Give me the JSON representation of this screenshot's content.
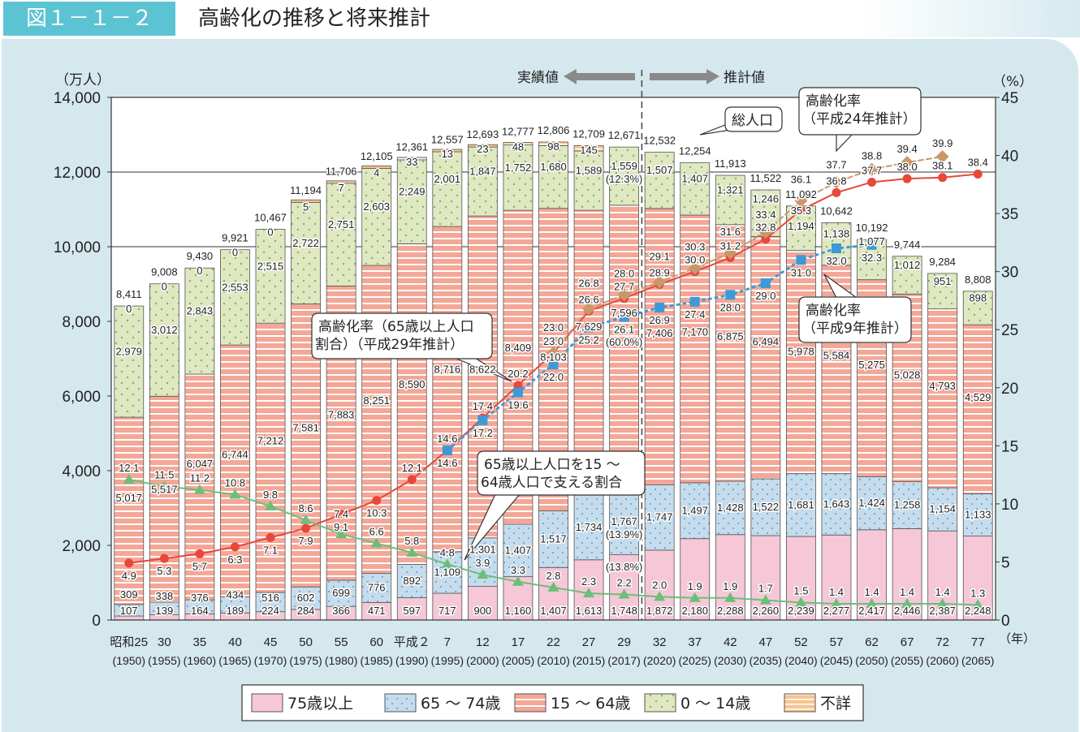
{
  "header": {
    "figure_no": "図１－１－２",
    "title": "高齢化の推移と将来推計"
  },
  "chart_data": {
    "type": "bar",
    "stacked": true,
    "left_axis": {
      "label": "（万人）",
      "range": [
        0,
        14000
      ],
      "ticks": [
        "0",
        "2,000",
        "4,000",
        "6,000",
        "8,000",
        "10,000",
        "12,000",
        "14,000"
      ]
    },
    "right_axis": {
      "label": "（%）",
      "range": [
        0,
        45
      ],
      "ticks": [
        "0",
        "5",
        "10",
        "15",
        "20",
        "25",
        "30",
        "35",
        "40",
        "45"
      ]
    },
    "x_unit": "（年）",
    "actual_label": "実績値",
    "estimate_label": "推計値",
    "categories": [
      {
        "era": "昭和25",
        "year": "(1950)"
      },
      {
        "era": "30",
        "year": "(1955)"
      },
      {
        "era": "35",
        "year": "(1960)"
      },
      {
        "era": "40",
        "year": "(1965)"
      },
      {
        "era": "45",
        "year": "(1970)"
      },
      {
        "era": "50",
        "year": "(1975)"
      },
      {
        "era": "55",
        "year": "(1980)"
      },
      {
        "era": "60",
        "year": "(1985)"
      },
      {
        "era": "平成２",
        "year": "(1990)"
      },
      {
        "era": "7",
        "year": "(1995)"
      },
      {
        "era": "12",
        "year": "(2000)"
      },
      {
        "era": "17",
        "year": "(2005)"
      },
      {
        "era": "22",
        "year": "(2010)"
      },
      {
        "era": "27",
        "year": "(2015)"
      },
      {
        "era": "29",
        "year": "(2017)"
      },
      {
        "era": "32",
        "year": "(2020)"
      },
      {
        "era": "37",
        "year": "(2025)"
      },
      {
        "era": "42",
        "year": "(2030)"
      },
      {
        "era": "47",
        "year": "(2035)"
      },
      {
        "era": "52",
        "year": "(2040)"
      },
      {
        "era": "57",
        "year": "(2045)"
      },
      {
        "era": "62",
        "year": "(2050)"
      },
      {
        "era": "67",
        "year": "(2055)"
      },
      {
        "era": "72",
        "year": "(2060)"
      },
      {
        "era": "77",
        "year": "(2065)"
      }
    ],
    "totals": [
      8411,
      9008,
      9430,
      9921,
      10467,
      11194,
      11706,
      12105,
      12361,
      12557,
      12693,
      12777,
      12806,
      12709,
      12671,
      12532,
      12254,
      11913,
      11522,
      11092,
      10642,
      10192,
      9744,
      9284,
      8808
    ],
    "series": [
      {
        "name": "75歳以上",
        "color": "#f5c7d7",
        "values": [
          107,
          139,
          164,
          189,
          224,
          284,
          366,
          471,
          597,
          717,
          900,
          1160,
          1407,
          1613,
          1748,
          1872,
          2180,
          2288,
          2260,
          2239,
          2277,
          2417,
          2446,
          2387,
          2248
        ]
      },
      {
        "name": "65 ～ 74歳",
        "color": "#c6dcec",
        "values": [
          309,
          338,
          376,
          434,
          516,
          602,
          699,
          776,
          892,
          1109,
          1301,
          1407,
          1517,
          1734,
          1767,
          1747,
          1497,
          1428,
          1522,
          1681,
          1643,
          1424,
          1258,
          1154,
          1133
        ]
      },
      {
        "name": "15 ～ 64歳",
        "color": "#f4a797",
        "values": [
          5017,
          5517,
          6047,
          6744,
          7212,
          7581,
          7883,
          8251,
          8590,
          8716,
          8622,
          8409,
          8103,
          7629,
          7596,
          7406,
          7170,
          6875,
          6494,
          5978,
          5584,
          5275,
          5028,
          4793,
          4529
        ]
      },
      {
        "name": "0 ～ 14歳",
        "color": "#dfe8c1",
        "values": [
          2979,
          3012,
          2843,
          2553,
          2515,
          2722,
          2751,
          2603,
          2249,
          2001,
          1847,
          1752,
          1680,
          1589,
          1559,
          1507,
          1407,
          1321,
          1246,
          1194,
          1138,
          1077,
          1012,
          951,
          898
        ]
      },
      {
        "name": "不詳",
        "color": "#f9c48e",
        "values": [
          0,
          0,
          0,
          0,
          0,
          5,
          7,
          4,
          33,
          13,
          23,
          48,
          98,
          145,
          null,
          null,
          null,
          null,
          null,
          null,
          null,
          null,
          null,
          null,
          null
        ]
      }
    ],
    "share_labels_2017": {
      "75歳以上": "(13.8%)",
      "65 ～ 74歳": "(13.9%)",
      "15 ～ 64歳": "(60.0%)",
      "0 ～ 14歳": "(12.3%)"
    },
    "lines": [
      {
        "name": "高齢化率（65歳以上人口割合）（平成29年推計）",
        "color": "#e8473a",
        "axis": "right",
        "values": [
          4.9,
          5.3,
          5.7,
          6.3,
          7.1,
          7.9,
          9.1,
          10.3,
          12.1,
          14.6,
          17.4,
          20.2,
          23.0,
          26.6,
          27.7,
          28.9,
          30.0,
          31.2,
          32.8,
          35.3,
          36.8,
          37.7,
          38.0,
          38.1,
          38.4
        ]
      },
      {
        "name": "高齢化率（平成24年推計）",
        "color": "#c9986a",
        "axis": "right",
        "values": [
          null,
          null,
          null,
          null,
          null,
          null,
          null,
          null,
          null,
          null,
          null,
          null,
          23.0,
          26.8,
          28.0,
          29.1,
          30.3,
          31.6,
          33.4,
          36.1,
          37.7,
          38.8,
          39.4,
          39.9,
          null
        ]
      },
      {
        "name": "高齢化率（平成9年推計）",
        "color": "#3d9ad6",
        "axis": "right",
        "values": [
          null,
          null,
          null,
          null,
          null,
          null,
          null,
          null,
          null,
          14.6,
          17.2,
          19.6,
          22.0,
          25.2,
          26.1,
          26.9,
          27.4,
          28.0,
          29.0,
          31.0,
          32.0,
          32.3,
          null,
          null,
          null
        ]
      },
      {
        "name": "65歳以上人口を15 ～ 64歳人口で支える割合",
        "color": "#6bbf7a",
        "axis": "right",
        "values": [
          12.1,
          11.5,
          11.2,
          10.8,
          9.8,
          8.6,
          7.4,
          6.6,
          5.8,
          4.8,
          3.9,
          3.3,
          2.8,
          2.3,
          2.2,
          2.0,
          1.9,
          1.9,
          1.7,
          1.5,
          1.4,
          1.4,
          1.4,
          1.4,
          1.3
        ]
      }
    ],
    "annotations": {
      "total": "総人口",
      "h24_l1": "高齢化率",
      "h24_l2": "（平成24年推計）",
      "h29_l1": "高齢化率（65歳以上人口",
      "h29_l2": "割合）（平成29年推計）",
      "h9_l1": "高齢化率",
      "h9_l2": "（平成9年推計）",
      "support_l1": "65歳以上人口を15 ～",
      "support_l2": "64歳人口で支える割合"
    },
    "legend": {
      "position": "bottom",
      "items": [
        "75歳以上",
        "65 ～ 74歳",
        "15 ～ 64歳",
        "0 ～ 14歳",
        "不詳"
      ]
    },
    "grid": "horizontal at 12,000 / 10,000 only"
  }
}
